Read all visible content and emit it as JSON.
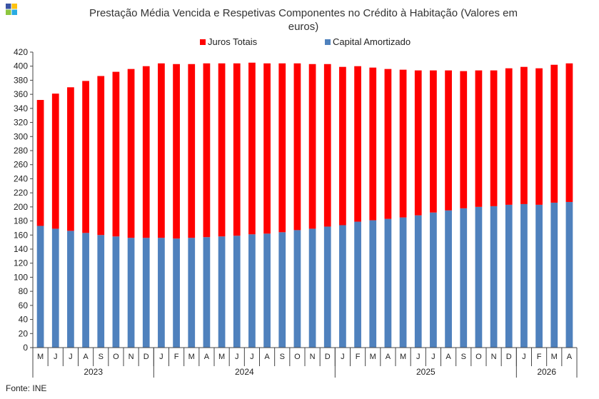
{
  "logo": {
    "name": "ine-logo",
    "colors": [
      "#3a53a4",
      "#ffc20e",
      "#8dc63f",
      "#29abe2"
    ]
  },
  "chart_data": {
    "type": "bar",
    "stacked": true,
    "title_line1": "Prestação Média Vencida e Respetivas Componentes  no Crédito à Habitação (Valores em",
    "title_line2": "euros)",
    "ylim": [
      0,
      420
    ],
    "yticks": [
      0,
      20,
      40,
      60,
      80,
      100,
      120,
      140,
      160,
      180,
      200,
      220,
      240,
      260,
      280,
      300,
      320,
      340,
      360,
      380,
      400,
      420
    ],
    "grid": false,
    "legend_position": "top",
    "categories": [
      "M",
      "J",
      "J",
      "A",
      "S",
      "O",
      "N",
      "D",
      "J",
      "F",
      "M",
      "A",
      "M",
      "J",
      "J",
      "A",
      "S",
      "O",
      "N",
      "D",
      "J",
      "F",
      "M",
      "A",
      "M",
      "J",
      "J",
      "A",
      "S",
      "O",
      "N",
      "D",
      "J",
      "F",
      "M",
      "A"
    ],
    "years": [
      {
        "label": "2023",
        "start": 0,
        "end": 8
      },
      {
        "label": "2024",
        "start": 8,
        "end": 20
      },
      {
        "label": "2025",
        "start": 20,
        "end": 32
      },
      {
        "label": "2026",
        "start": 32,
        "end": 36
      }
    ],
    "series": [
      {
        "name": "Capital Amortizado",
        "color": "#4f81bd",
        "values": [
          173,
          169,
          166,
          163,
          160,
          158,
          156,
          156,
          156,
          155,
          156,
          157,
          158,
          159,
          161,
          162,
          164,
          167,
          169,
          172,
          174,
          179,
          181,
          183,
          185,
          188,
          192,
          195,
          198,
          200,
          201,
          203,
          204,
          203,
          206,
          207
        ]
      },
      {
        "name": "Juros Totais",
        "color": "#ff0000",
        "values": [
          179,
          192,
          204,
          216,
          226,
          234,
          240,
          244,
          248,
          248,
          247,
          247,
          246,
          245,
          244,
          242,
          240,
          237,
          234,
          231,
          225,
          221,
          217,
          213,
          210,
          206,
          202,
          199,
          195,
          194,
          193,
          194,
          195,
          194,
          196,
          197
        ]
      }
    ],
    "legend": [
      {
        "name": "Juros Totais",
        "color": "#ff0000"
      },
      {
        "name": "Capital Amortizado",
        "color": "#4f81bd"
      }
    ],
    "source": "Fonte: INE"
  }
}
